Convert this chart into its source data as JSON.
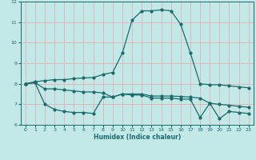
{
  "xlabel": "Humidex (Indice chaleur)",
  "ylabel": "",
  "background_color": "#c3e8e8",
  "grid_color": "#e0b8b8",
  "line_color": "#1a6b6b",
  "xlim": [
    -0.5,
    23.5
  ],
  "ylim": [
    6.0,
    12.0
  ],
  "xticks": [
    0,
    1,
    2,
    3,
    4,
    5,
    6,
    7,
    8,
    9,
    10,
    11,
    12,
    13,
    14,
    15,
    16,
    17,
    18,
    19,
    20,
    21,
    22,
    23
  ],
  "yticks": [
    6,
    7,
    8,
    9,
    10,
    11,
    12
  ],
  "line1_x": [
    0,
    1,
    2,
    3,
    4,
    5,
    6,
    7,
    8,
    9,
    10,
    11,
    12,
    13,
    14,
    15,
    16,
    17,
    18,
    19,
    20,
    21,
    22,
    23
  ],
  "line1_y": [
    8.0,
    8.1,
    8.15,
    8.2,
    8.2,
    8.25,
    8.28,
    8.3,
    8.45,
    8.55,
    9.5,
    11.1,
    11.55,
    11.55,
    11.6,
    11.55,
    10.9,
    9.5,
    8.0,
    7.95,
    7.95,
    7.9,
    7.85,
    7.8
  ],
  "line2_x": [
    0,
    1,
    2,
    3,
    4,
    5,
    6,
    7,
    8,
    9,
    10,
    11,
    12,
    13,
    14,
    15,
    16,
    17,
    18,
    19,
    20,
    21,
    22,
    23
  ],
  "line2_y": [
    8.0,
    8.05,
    7.75,
    7.75,
    7.7,
    7.65,
    7.6,
    7.6,
    7.55,
    7.35,
    7.5,
    7.5,
    7.5,
    7.4,
    7.4,
    7.4,
    7.38,
    7.35,
    7.3,
    7.05,
    7.0,
    6.95,
    6.9,
    6.85
  ],
  "line3_x": [
    0,
    1,
    2,
    3,
    4,
    5,
    6,
    7,
    8,
    9,
    10,
    11,
    12,
    13,
    14,
    15,
    16,
    17,
    18,
    19,
    20,
    21,
    22,
    23
  ],
  "line3_y": [
    8.0,
    8.05,
    7.0,
    6.75,
    6.65,
    6.6,
    6.6,
    6.55,
    7.35,
    7.35,
    7.5,
    7.45,
    7.45,
    7.3,
    7.3,
    7.3,
    7.25,
    7.25,
    6.35,
    7.05,
    6.3,
    6.65,
    6.6,
    6.55
  ]
}
